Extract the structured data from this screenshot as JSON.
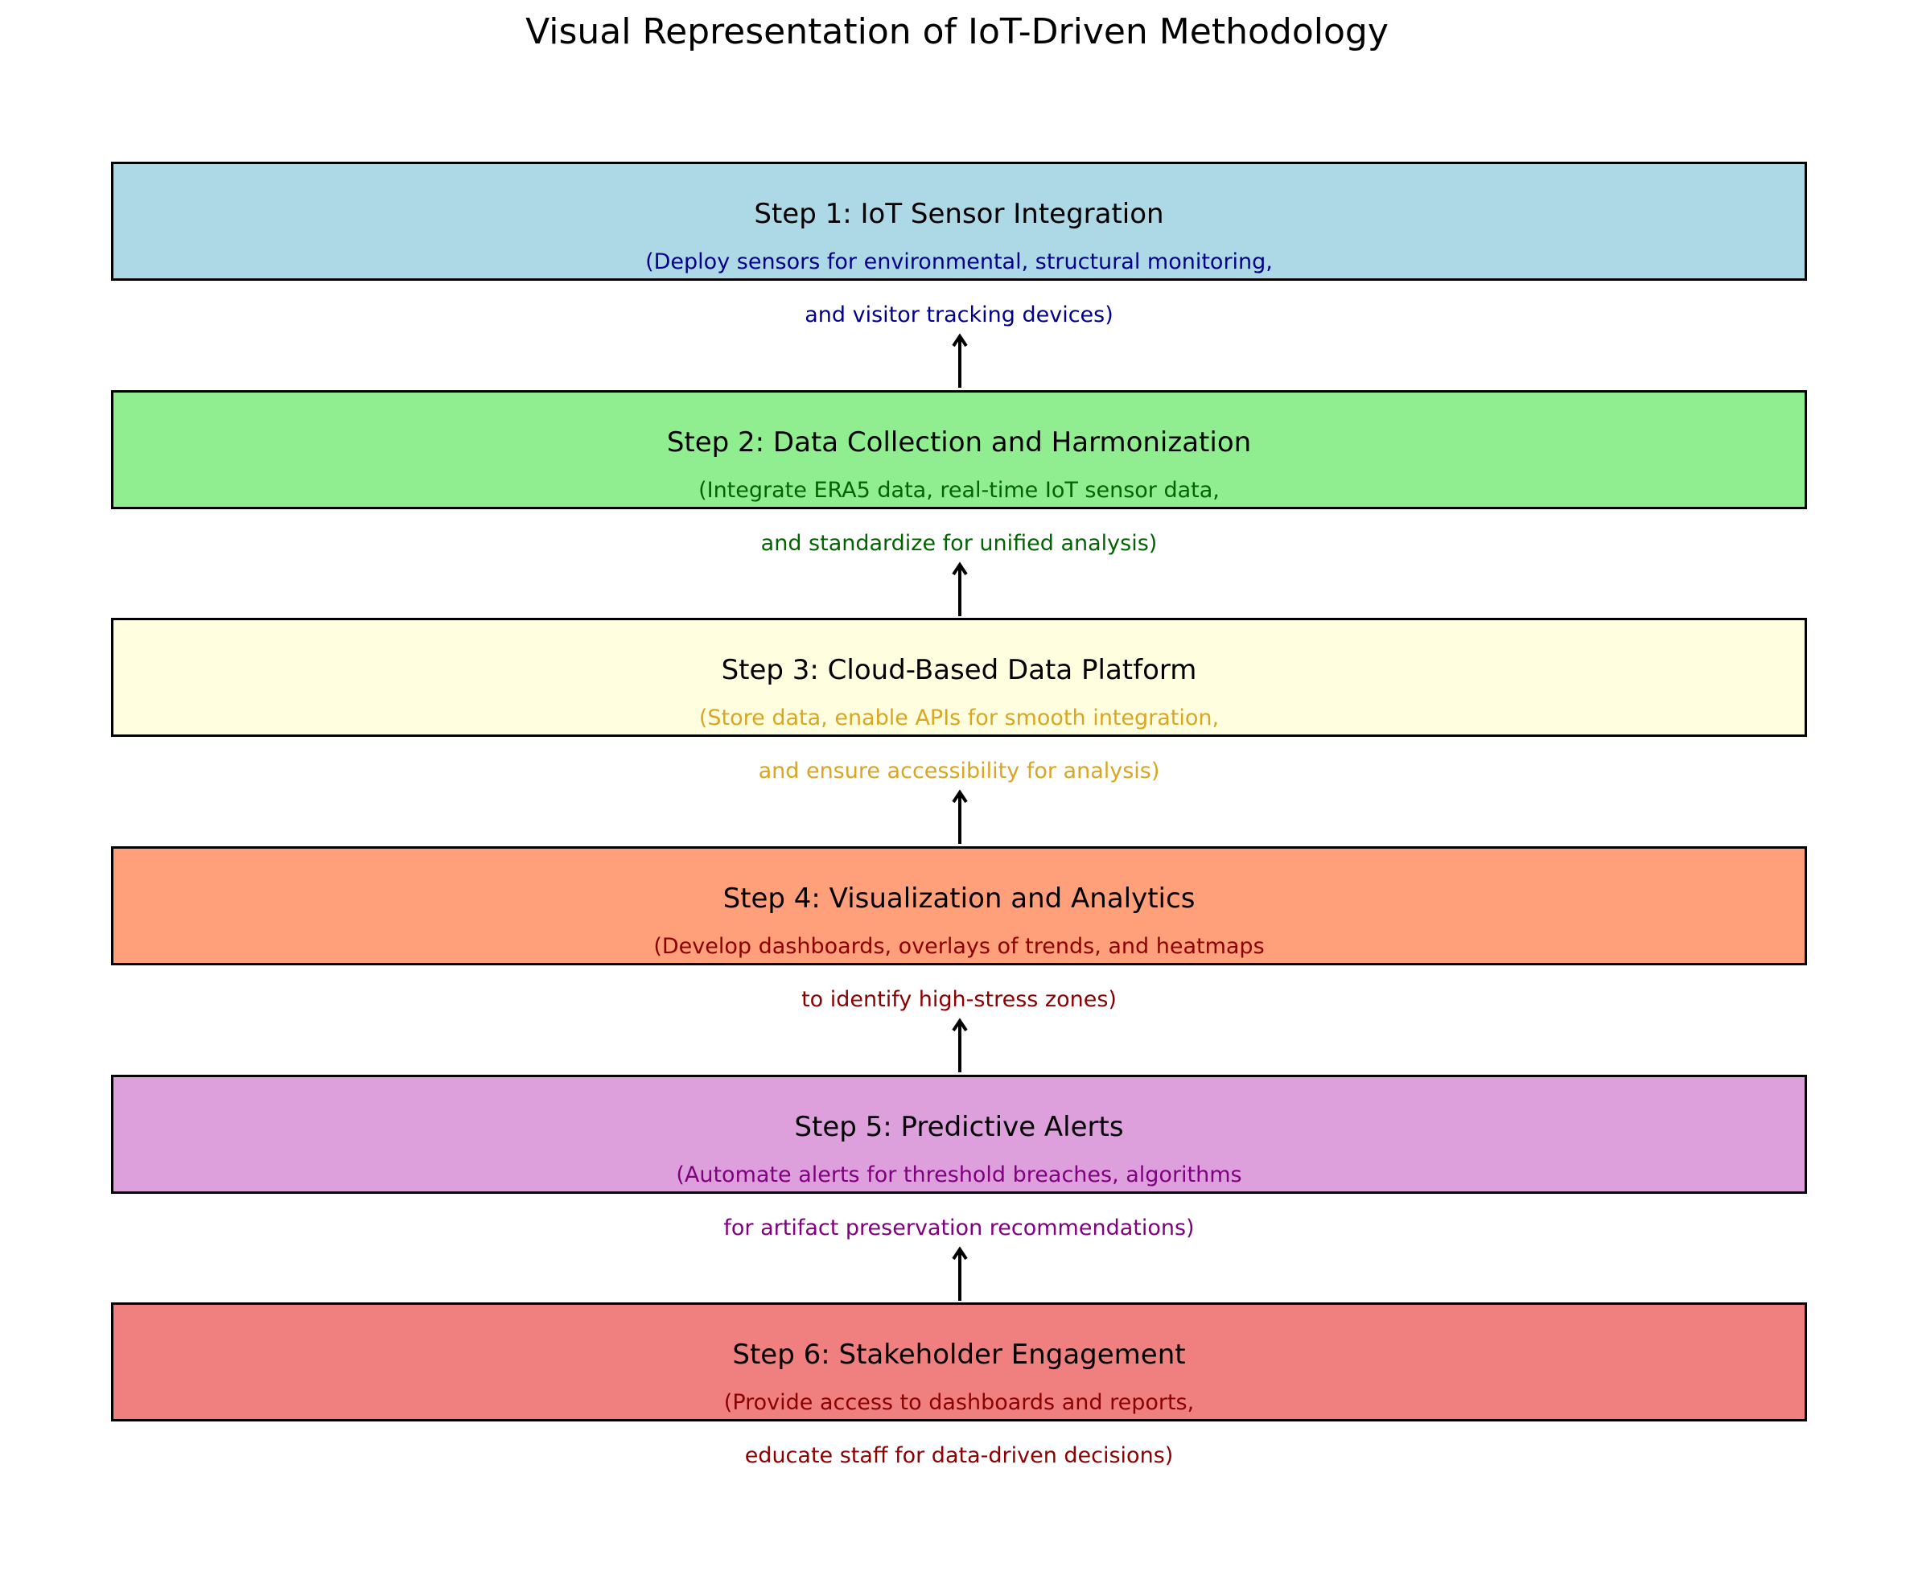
{
  "title": "Visual Representation of IoT-Driven Methodology",
  "steps": [
    {
      "title": "Step 1: IoT Sensor Integration",
      "desc_line1": "(Deploy sensors for environmental, structural monitoring,",
      "desc_line2": "and visitor tracking devices)",
      "fill": "#add8e6",
      "text_color": "#00008b"
    },
    {
      "title": "Step 2: Data Collection and Harmonization",
      "desc_line1": "(Integrate ERA5 data, real-time IoT sensor data,",
      "desc_line2": "and standardize for unified analysis)",
      "fill": "#90ee90",
      "text_color": "#006400"
    },
    {
      "title": "Step 3: Cloud-Based Data Platform",
      "desc_line1": "(Store data, enable APIs for smooth integration,",
      "desc_line2": "and ensure accessibility for analysis)",
      "fill": "#ffffe0",
      "text_color": "#daa520"
    },
    {
      "title": "Step 4: Visualization and Analytics",
      "desc_line1": "(Develop dashboards, overlays of trends, and heatmaps",
      "desc_line2": "to identify high-stress zones)",
      "fill": "#ffa07a",
      "text_color": "#8b0000"
    },
    {
      "title": "Step 5: Predictive Alerts",
      "desc_line1": "(Automate alerts for threshold breaches, algorithms",
      "desc_line2": "for artifact preservation recommendations)",
      "fill": "#dda0dd",
      "text_color": "#800080"
    },
    {
      "title": "Step 6: Stakeholder Engagement",
      "desc_line1": "(Provide access to dashboards and reports,",
      "desc_line2": "educate staff for data-driven decisions)",
      "fill": "#f08080",
      "text_color": "#8b0000"
    }
  ],
  "arrow_color": "#000000"
}
